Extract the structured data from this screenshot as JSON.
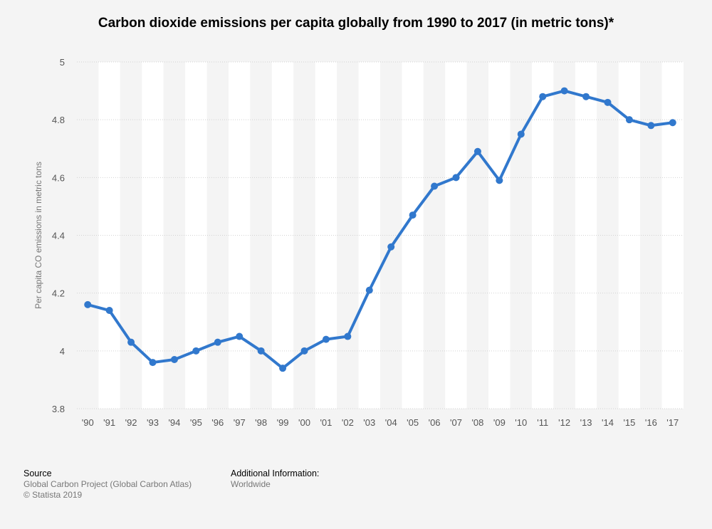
{
  "chart_data": {
    "type": "line",
    "title": "Carbon dioxide emissions per capita globally from 1990 to 2017 (in metric tons)*",
    "ylabel": "Per capita CO emissions in metric tons",
    "xlabel": "",
    "categories": [
      "'90",
      "'91",
      "'92",
      "'93",
      "'94",
      "'95",
      "'96",
      "'97",
      "'98",
      "'99",
      "'00",
      "'01",
      "'02",
      "'03",
      "'04",
      "'05",
      "'06",
      "'07",
      "'08",
      "'09",
      "'10",
      "'11",
      "'12",
      "'13",
      "'14",
      "'15",
      "'16",
      "'17"
    ],
    "series": [
      {
        "values": [
          4.16,
          4.14,
          4.03,
          3.96,
          3.97,
          4.0,
          4.03,
          4.05,
          4.0,
          3.94,
          4.0,
          4.04,
          4.05,
          4.21,
          4.36,
          4.47,
          4.57,
          4.6,
          4.69,
          4.59,
          4.75,
          4.88,
          4.9,
          4.88,
          4.86,
          4.8,
          4.78,
          4.79
        ]
      }
    ],
    "ylim": [
      3.8,
      5
    ],
    "yticks": [
      "3.8",
      "4",
      "4.2",
      "4.4",
      "4.6",
      "4.8",
      "5"
    ],
    "grid": true,
    "line_color": "#3178cd"
  },
  "footer": {
    "source_heading": "Source",
    "source_text": "Global Carbon Project (Global Carbon Atlas)",
    "copyright": "© Statista 2019",
    "info_heading": "Additional Information:",
    "info_text": "Worldwide"
  }
}
